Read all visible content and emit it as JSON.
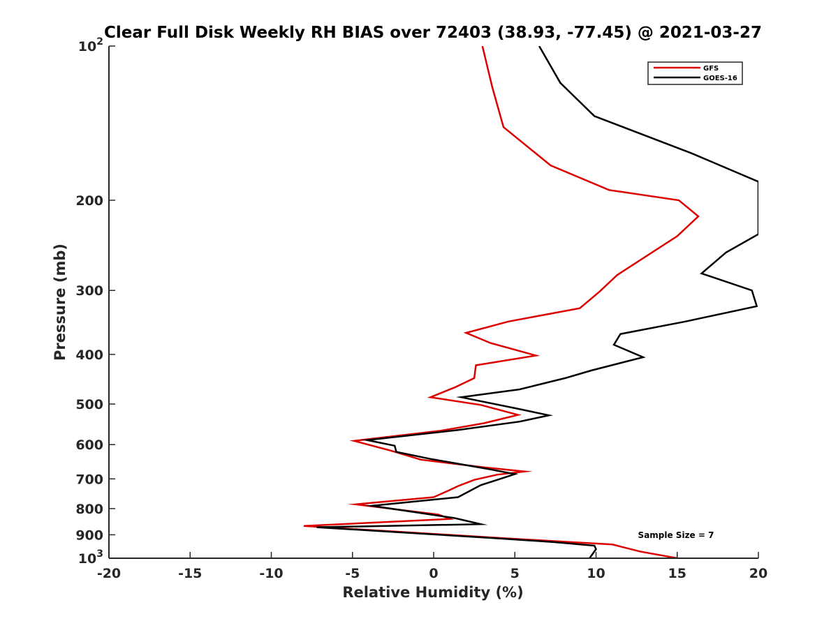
{
  "chart_data": {
    "type": "line",
    "title": "Clear Full Disk Weekly RH BIAS over 72403 (38.93, -77.45) @ 2021-03-27",
    "xlabel": "Relative Humidity (%)",
    "ylabel": "Pressure (mb)",
    "xlim": [
      -20,
      20
    ],
    "ylim": [
      100,
      1000
    ],
    "y_scale": "log",
    "y_reversed": true,
    "grid": false,
    "legend_position": "top-right",
    "x_ticks": [
      "-20",
      "-15",
      "-10",
      "-5",
      "0",
      "5",
      "10",
      "15",
      "20"
    ],
    "y_ticks": [
      {
        "value": 100,
        "base": "10",
        "exp": "2"
      },
      {
        "value": 200,
        "label": "200"
      },
      {
        "value": 300,
        "label": "300"
      },
      {
        "value": 400,
        "label": "400"
      },
      {
        "value": 500,
        "label": "500"
      },
      {
        "value": 600,
        "label": "600"
      },
      {
        "value": 700,
        "label": "700"
      },
      {
        "value": 800,
        "label": "800"
      },
      {
        "value": 900,
        "label": "900"
      },
      {
        "value": 1000,
        "base": "10",
        "exp": "3"
      }
    ],
    "annotation": "Sample Size = 7",
    "series": [
      {
        "name": "GFS",
        "color": "#dd0000",
        "points": [
          [
            3.0,
            100
          ],
          [
            3.6,
            120
          ],
          [
            4.3,
            144
          ],
          [
            7.2,
            171
          ],
          [
            10.8,
            191
          ],
          [
            15.1,
            200
          ],
          [
            16.3,
            215
          ],
          [
            15.0,
            235
          ],
          [
            11.3,
            280
          ],
          [
            10.2,
            302
          ],
          [
            9.0,
            325
          ],
          [
            4.6,
            345
          ],
          [
            2.0,
            363
          ],
          [
            3.5,
            380
          ],
          [
            6.3,
            402
          ],
          [
            2.6,
            420
          ],
          [
            2.5,
            445
          ],
          [
            1.3,
            464
          ],
          [
            -0.2,
            485
          ],
          [
            2.9,
            502
          ],
          [
            5.2,
            525
          ],
          [
            3.1,
            545
          ],
          [
            0.4,
            564
          ],
          [
            -4.9,
            590
          ],
          [
            -2.6,
            617
          ],
          [
            -0.8,
            642
          ],
          [
            3.0,
            664
          ],
          [
            5.6,
            677
          ],
          [
            3.9,
            687
          ],
          [
            2.5,
            703
          ],
          [
            1.5,
            723
          ],
          [
            0.9,
            738
          ],
          [
            0.0,
            760
          ],
          [
            -4.8,
            785
          ],
          [
            0.3,
            822
          ],
          [
            1.0,
            838
          ],
          [
            -8.0,
            865
          ],
          [
            4.1,
            913
          ],
          [
            9.0,
            932
          ],
          [
            11.0,
            940
          ],
          [
            12.7,
            970
          ],
          [
            15.0,
            1000
          ]
        ]
      },
      {
        "name": "GOES-16",
        "color": "#000000",
        "points": [
          [
            6.5,
            100
          ],
          [
            7.8,
            118
          ],
          [
            9.9,
            137
          ],
          [
            15.9,
            162
          ],
          [
            20.0,
            184
          ],
          [
            20.0,
            233
          ],
          [
            18.0,
            253
          ],
          [
            16.5,
            278
          ],
          [
            19.6,
            300
          ],
          [
            19.9,
            322
          ],
          [
            15.5,
            345
          ],
          [
            11.5,
            365
          ],
          [
            11.1,
            383
          ],
          [
            12.9,
            405
          ],
          [
            9.7,
            430
          ],
          [
            8.1,
            445
          ],
          [
            5.3,
            468
          ],
          [
            1.7,
            485
          ],
          [
            5.1,
            510
          ],
          [
            7.1,
            526
          ],
          [
            5.3,
            541
          ],
          [
            1.5,
            562
          ],
          [
            -4.1,
            588
          ],
          [
            -2.4,
            603
          ],
          [
            -2.3,
            620
          ],
          [
            -0.2,
            640
          ],
          [
            3.4,
            670
          ],
          [
            5.0,
            685
          ],
          [
            4.1,
            700
          ],
          [
            2.9,
            720
          ],
          [
            1.5,
            760
          ],
          [
            -3.8,
            790
          ],
          [
            1.3,
            835
          ],
          [
            2.9,
            858
          ],
          [
            -7.2,
            870
          ],
          [
            4.1,
            915
          ],
          [
            7.4,
            930
          ],
          [
            9.9,
            945
          ],
          [
            10.0,
            960
          ],
          [
            9.6,
            1000
          ]
        ]
      }
    ]
  }
}
